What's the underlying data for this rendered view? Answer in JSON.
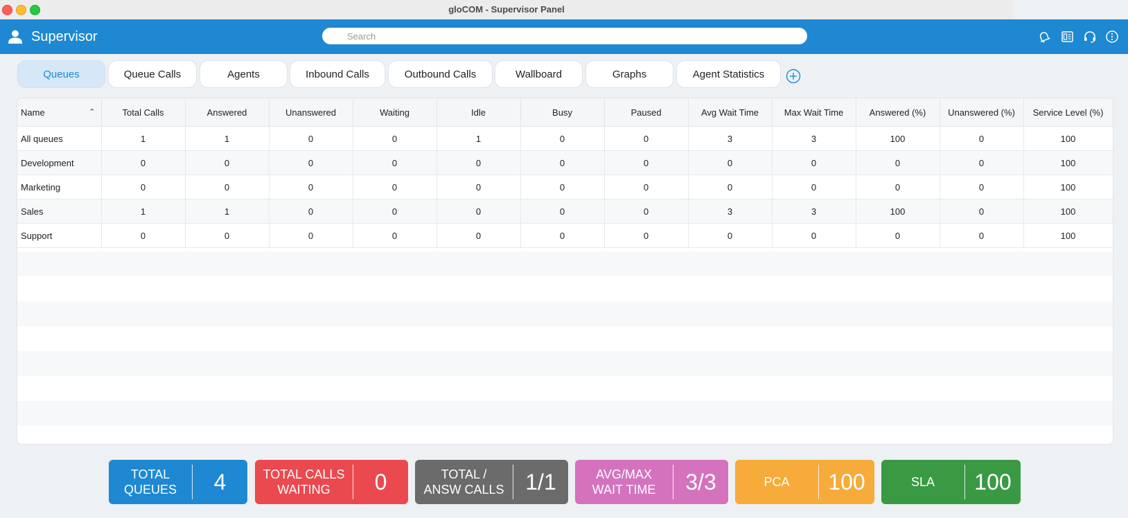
{
  "window": {
    "title": "gloCOM - Supervisor Panel"
  },
  "header": {
    "app_title": "Supervisor",
    "search_placeholder": "Search"
  },
  "tabs": [
    {
      "label": "Queues"
    },
    {
      "label": "Queue Calls"
    },
    {
      "label": "Agents"
    },
    {
      "label": "Inbound Calls"
    },
    {
      "label": "Outbound Calls"
    },
    {
      "label": "Wallboard"
    },
    {
      "label": "Graphs"
    },
    {
      "label": "Agent Statistics"
    }
  ],
  "table": {
    "columns": [
      "Name",
      "Total Calls",
      "Answered",
      "Unanswered",
      "Waiting",
      "Idle",
      "Busy",
      "Paused",
      "Avg Wait Time",
      "Max Wait Time",
      "Answered (%)",
      "Unanswered (%)",
      "Service Level (%)"
    ],
    "rows": [
      [
        "All queues",
        "1",
        "1",
        "0",
        "0",
        "1",
        "0",
        "0",
        "3",
        "3",
        "100",
        "0",
        "100"
      ],
      [
        "Development",
        "0",
        "0",
        "0",
        "0",
        "0",
        "0",
        "0",
        "0",
        "0",
        "0",
        "0",
        "100"
      ],
      [
        "Marketing",
        "0",
        "0",
        "0",
        "0",
        "0",
        "0",
        "0",
        "0",
        "0",
        "0",
        "0",
        "100"
      ],
      [
        "Sales",
        "1",
        "1",
        "0",
        "0",
        "0",
        "0",
        "0",
        "3",
        "3",
        "100",
        "0",
        "100"
      ],
      [
        "Support",
        "0",
        "0",
        "0",
        "0",
        "0",
        "0",
        "0",
        "0",
        "0",
        "0",
        "0",
        "100"
      ]
    ]
  },
  "stats": [
    {
      "label": "TOTAL\nQUEUES",
      "value": "4",
      "color": "#1e88d2"
    },
    {
      "label": "TOTAL CALLS\nWAITING",
      "value": "0",
      "color": "#ea4a4f"
    },
    {
      "label": "TOTAL /\nANSW CALLS",
      "value": "1/1",
      "color": "#6b6b6b"
    },
    {
      "label": "AVG/MAX\nWAIT TIME",
      "value": "3/3",
      "color": "#d472bd"
    },
    {
      "label": "PCA",
      "value": "100",
      "color": "#f7ab3a"
    },
    {
      "label": "SLA",
      "value": "100",
      "color": "#3a9a44"
    }
  ],
  "colors": {
    "accent": "#1e88d2",
    "header_bg": "#1e88d2",
    "active_tab_bg": "#d6e7f7"
  },
  "icons": [
    "user-icon",
    "notification-bell-icon",
    "phonebook-icon",
    "headset-icon",
    "info-menu-icon",
    "add-tab-icon",
    "search-icon"
  ]
}
